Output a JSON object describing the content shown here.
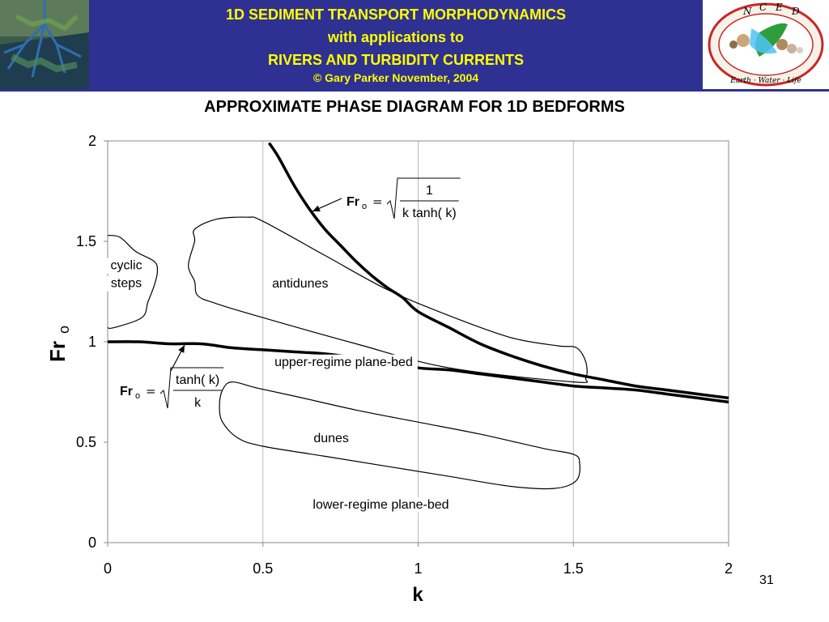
{
  "banner": {
    "line1": "1D SEDIMENT TRANSPORT MORPHODYNAMICS",
    "line2": "with applications to",
    "line3": "RIVERS AND TURBIDITY CURRENTS",
    "line4": "© Gary Parker November, 2004",
    "text_color": "#ffff00",
    "background": "#2e3192"
  },
  "logo": {
    "letters": [
      "N",
      "C",
      "E",
      "D"
    ],
    "motto": "Earth · Water · Life",
    "ring_color": "#d32f2f"
  },
  "slide_number": "31",
  "chart_data": {
    "type": "line",
    "title": "APPROXIMATE PHASE DIAGRAM FOR 1D BEDFORMS",
    "xlabel": "k",
    "ylabel": "Fr",
    "ylabel_subscript": "o",
    "xlim": [
      0,
      2
    ],
    "ylim": [
      0,
      2
    ],
    "xticks": [
      "0",
      "0.5",
      "1",
      "1.5",
      "2"
    ],
    "yticks": [
      "0",
      "0.5",
      "1",
      "1.5",
      "2"
    ],
    "grid": "vertical",
    "series": [
      {
        "formula_numerator": "1",
        "formula_denominator": "k tanh( k)",
        "formula_sqrt": true,
        "formula_lhs": "Fr",
        "formula_sub": "o",
        "x": [
          0.52,
          0.55,
          0.6,
          0.65,
          0.7,
          0.75,
          0.8,
          0.85,
          0.9,
          0.95,
          1.0,
          1.1,
          1.2,
          1.3,
          1.4,
          1.5,
          1.6,
          1.7,
          1.8,
          1.9,
          2.0
        ],
        "y": [
          1.99,
          1.92,
          1.78,
          1.66,
          1.56,
          1.48,
          1.4,
          1.33,
          1.27,
          1.22,
          1.15,
          1.07,
          0.99,
          0.93,
          0.88,
          0.84,
          0.81,
          0.78,
          0.76,
          0.74,
          0.72
        ]
      },
      {
        "formula_numerator": "tanh( k)",
        "formula_denominator": "k",
        "formula_sqrt": true,
        "formula_lhs": "Fr",
        "formula_sub": "o",
        "x": [
          0,
          0.1,
          0.2,
          0.3,
          0.4,
          0.5,
          0.6,
          0.7,
          0.8,
          0.9,
          1.0,
          1.1,
          1.2,
          1.3,
          1.4,
          1.5,
          1.6,
          1.7,
          1.8,
          1.9,
          2.0
        ],
        "y": [
          1.0,
          1.0,
          0.99,
          0.99,
          0.97,
          0.96,
          0.95,
          0.94,
          0.92,
          0.9,
          0.87,
          0.86,
          0.84,
          0.82,
          0.8,
          0.78,
          0.77,
          0.76,
          0.74,
          0.72,
          0.7
        ]
      }
    ],
    "regions": [
      {
        "label": "cyclic steps",
        "lines": [
          "cyclic",
          "steps"
        ],
        "label_x": 0.06,
        "label_y": 1.36,
        "outline": [
          [
            0.0,
            1.53
          ],
          [
            0.04,
            1.52
          ],
          [
            0.09,
            1.45
          ],
          [
            0.15,
            1.4
          ],
          [
            0.16,
            1.35
          ],
          [
            0.15,
            1.28
          ],
          [
            0.13,
            1.2
          ],
          [
            0.11,
            1.12
          ],
          [
            0.02,
            1.07
          ],
          [
            0.0,
            1.07
          ]
        ]
      },
      {
        "label": "antidunes",
        "label_x": 0.62,
        "label_y": 1.27,
        "outline": [
          [
            0.28,
            1.56
          ],
          [
            0.35,
            1.61
          ],
          [
            0.45,
            1.62
          ],
          [
            0.5,
            1.6
          ],
          [
            0.7,
            1.43
          ],
          [
            0.9,
            1.26
          ],
          [
            1.1,
            1.13
          ],
          [
            1.3,
            1.02
          ],
          [
            1.45,
            0.98
          ],
          [
            1.51,
            0.97
          ],
          [
            1.54,
            0.9
          ],
          [
            1.54,
            0.82
          ],
          [
            1.5,
            0.8
          ],
          [
            1.1,
            0.87
          ],
          [
            0.8,
            0.99
          ],
          [
            0.5,
            1.12
          ],
          [
            0.35,
            1.19
          ],
          [
            0.29,
            1.23
          ],
          [
            0.28,
            1.3
          ],
          [
            0.26,
            1.38
          ],
          [
            0.28,
            1.5
          ]
        ]
      },
      {
        "label": "upper-regime plane-bed",
        "label_x": 0.76,
        "label_y": 0.88
      },
      {
        "label": "dunes",
        "label_x": 0.72,
        "label_y": 0.5,
        "outline": [
          [
            0.4,
            0.8
          ],
          [
            0.48,
            0.77
          ],
          [
            0.6,
            0.73
          ],
          [
            0.8,
            0.66
          ],
          [
            1.0,
            0.6
          ],
          [
            1.2,
            0.54
          ],
          [
            1.4,
            0.47
          ],
          [
            1.5,
            0.44
          ],
          [
            1.52,
            0.4
          ],
          [
            1.51,
            0.31
          ],
          [
            1.44,
            0.27
          ],
          [
            1.3,
            0.28
          ],
          [
            1.1,
            0.33
          ],
          [
            0.9,
            0.38
          ],
          [
            0.7,
            0.43
          ],
          [
            0.5,
            0.48
          ],
          [
            0.42,
            0.52
          ],
          [
            0.37,
            0.6
          ],
          [
            0.36,
            0.68
          ],
          [
            0.37,
            0.76
          ]
        ]
      },
      {
        "label": "lower-regime plane-bed",
        "label_x": 0.88,
        "label_y": 0.17
      }
    ]
  }
}
